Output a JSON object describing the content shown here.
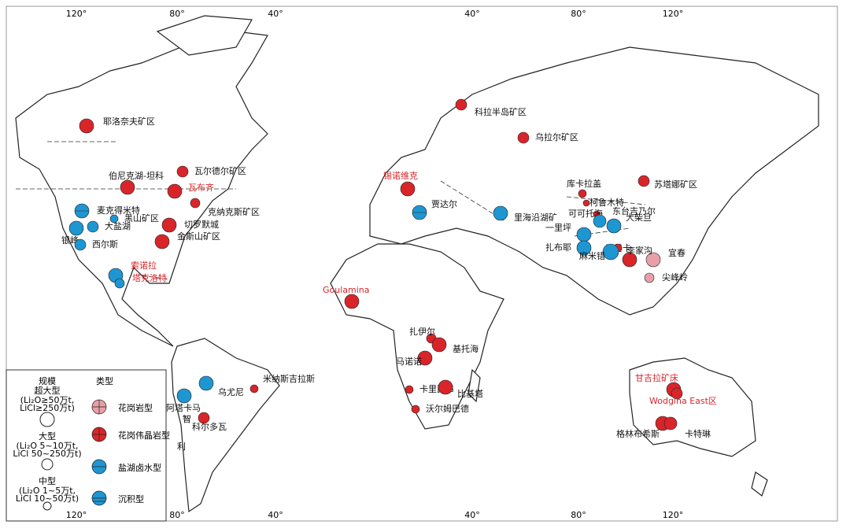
{
  "longitudes_top": [
    "120°",
    "80°",
    "40°",
    "40°",
    "80°",
    "120°"
  ],
  "longitudes_bottom": [
    "120°",
    "80°",
    "40°",
    "40°",
    "80°",
    "120°"
  ],
  "country_labels": [
    "智",
    "利"
  ],
  "legend": {
    "scale_title": "规模",
    "sizes": [
      {
        "name": "超大型",
        "note": [
          "(Li₂O≥50万t,",
          "LiCl≥250万t)"
        ]
      },
      {
        "name": "大型",
        "note": [
          "(Li₂O 5~10万t,",
          "LiCl 50~250万t)"
        ]
      },
      {
        "name": "中型",
        "note": [
          "(Li₂O 1~5万t,",
          "LiCl 10~50万t)"
        ]
      }
    ],
    "type_title": "类型",
    "types": [
      {
        "name": "花岗岩型",
        "color": "#e8a0a8",
        "deposits": [
          "宜春",
          "尖峰岭"
        ]
      },
      {
        "name": "花岗伟晶岩型",
        "color": "#d9252a",
        "deposits": [
          "耶洛奈夫矿区",
          "伯尼克湖-坦科",
          "瓦尔德尔矿区",
          "瓦布齐",
          "克纳克斯矿区",
          "切罗默城",
          "金斯山矿区",
          "科拉半岛矿区",
          "乌拉尔矿区",
          "锡诺维克",
          "Goulamina",
          "扎伊尔",
          "基托海",
          "马诺诺",
          "卡里比布",
          "比基塔",
          "沃尔姆巴德",
          "米纳斯吉拉斯",
          "科尔多瓦",
          "库卡拉盖",
          "苏塔娜矿区",
          "柯鲁木特",
          "可可托海",
          "甲基卡",
          "李家沟",
          "甘吉拉矿床",
          "Wodgina East区",
          "格林布希斯",
          "卡特琳"
        ]
      },
      {
        "name": "盐湖卤水型",
        "color": "#1e96d2",
        "deposits": [
          "银峰",
          "大盐湖",
          "黑山矿区",
          "西尔斯",
          "索诺拉",
          "塔克洛特",
          "里海沿湖矿",
          "阿塔卡马",
          "乌尤尼",
          "大柴旦",
          "一里坪",
          "扎布耶",
          "东台吉乃尔",
          "麻米错"
        ]
      },
      {
        "name": "沉积型",
        "color": "#1e96d2",
        "deposits": [
          "麦克得米特",
          "贾达尔"
        ]
      }
    ]
  }
}
